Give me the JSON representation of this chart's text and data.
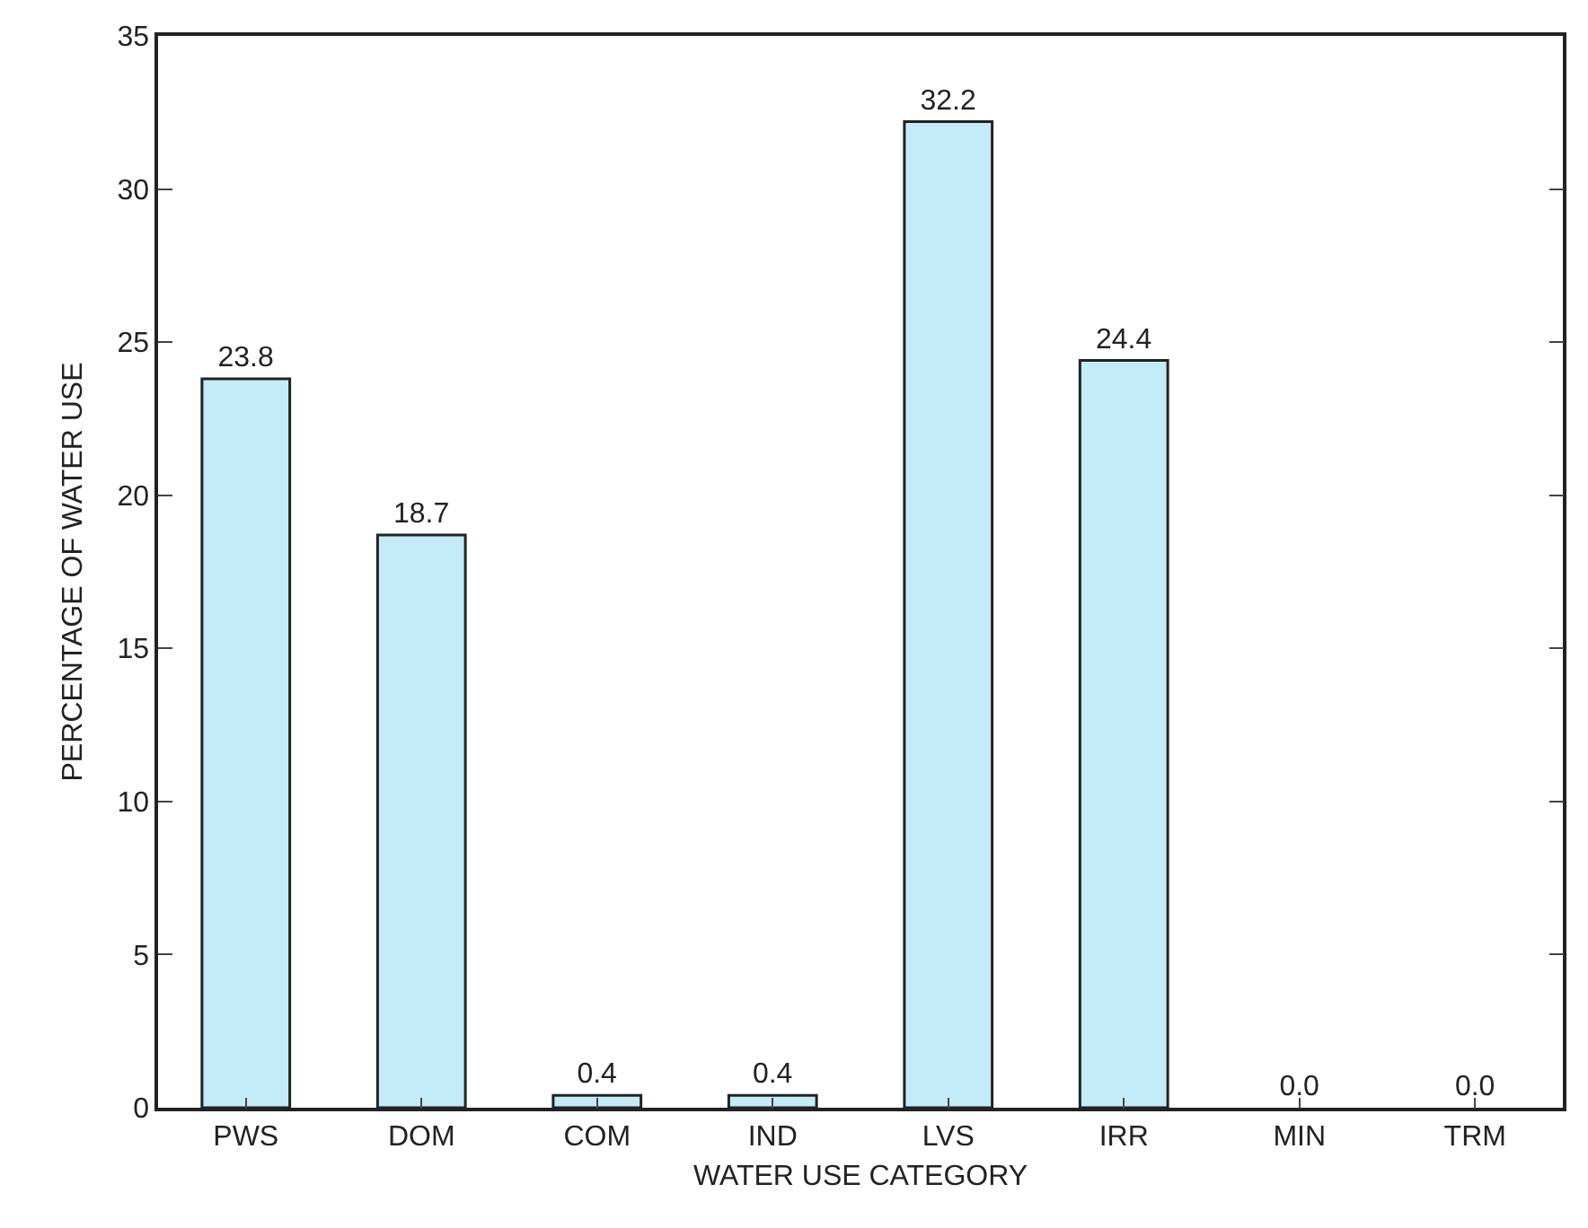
{
  "chart_data": {
    "type": "bar",
    "xlabel": "WATER USE CATEGORY",
    "ylabel": "PERCENTAGE OF WATER USE",
    "categories": [
      "PWS",
      "DOM",
      "COM",
      "IND",
      "LVS",
      "IRR",
      "MIN",
      "TRM"
    ],
    "values": [
      23.8,
      18.7,
      0.4,
      0.4,
      32.2,
      24.4,
      0.0,
      0.0
    ],
    "value_labels": [
      "23.8",
      "18.7",
      "0.4",
      "0.4",
      "32.2",
      "24.4",
      "0.0",
      "0.0"
    ],
    "color": "#c4ecf8",
    "ylim": [
      0,
      35
    ],
    "yticks": [
      0,
      5,
      10,
      15,
      20,
      25,
      30,
      35
    ],
    "grid": false,
    "legend": false
  }
}
